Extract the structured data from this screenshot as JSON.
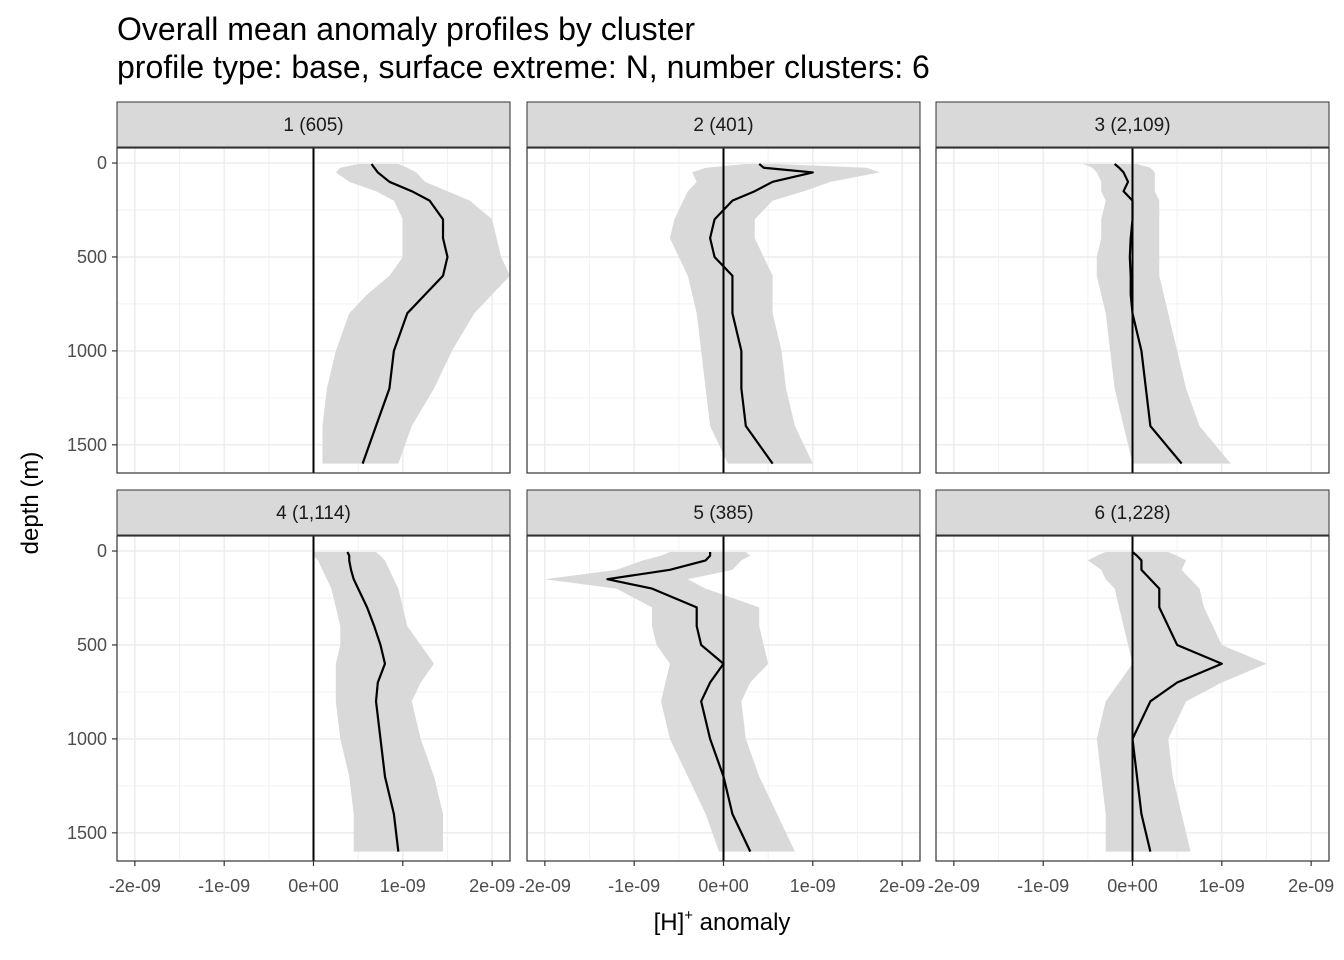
{
  "chart_data": {
    "type": "line",
    "title": "Overall mean anomaly profiles by cluster",
    "subtitle": "profile type: base, surface extreme: N, number clusters: 6",
    "xlabel": "[H]",
    "xlabel_sup": "+",
    "xlabel_suffix": " anomaly",
    "ylabel": "depth (m)",
    "xlim": [
      -2.2e-09,
      2.2e-09
    ],
    "ylim": [
      1650,
      -80
    ],
    "y_reversed": true,
    "x_ticks": [
      -2e-09,
      -1e-09,
      0,
      1e-09,
      2e-09
    ],
    "x_tick_labels": [
      "-2e-09",
      "-1e-09",
      "0e+00",
      "1e-09",
      "2e-09"
    ],
    "y_ticks": [
      0,
      500,
      1000,
      1500
    ],
    "y_tick_labels": [
      "0",
      "500",
      "1000",
      "1500"
    ],
    "reference_line_x": 0,
    "band_color": "#d9d9d9",
    "line_color": "#000000",
    "depths": [
      5,
      25,
      50,
      100,
      150,
      200,
      300,
      400,
      500,
      600,
      700,
      800,
      1000,
      1200,
      1400,
      1600
    ],
    "panels": [
      {
        "label": "1 (605)",
        "mean": [
          6.5e-10,
          6.8e-10,
          7.2e-10,
          8.5e-10,
          1.1e-09,
          1.3e-09,
          1.45e-09,
          1.45e-09,
          1.5e-09,
          1.45e-09,
          1.25e-09,
          1.05e-09,
          9e-10,
          8.5e-10,
          7e-10,
          5.5e-10
        ],
        "lower": [
          5e-10,
          3e-10,
          2.5e-10,
          4e-10,
          7e-10,
          9e-10,
          1e-09,
          1e-09,
          1e-09,
          8.5e-10,
          6e-10,
          4e-10,
          2.5e-10,
          1.5e-10,
          1e-10,
          1e-10
        ],
        "upper": [
          9.5e-10,
          1.05e-09,
          1.15e-09,
          1.25e-09,
          1.5e-09,
          1.75e-09,
          2e-09,
          2.05e-09,
          2.1e-09,
          2.2e-09,
          2e-09,
          1.8e-09,
          1.55e-09,
          1.35e-09,
          1.1e-09,
          9.5e-10
        ]
      },
      {
        "label": "2 (401)",
        "mean": [
          4e-10,
          4.5e-10,
          1e-09,
          5.5e-10,
          3.5e-10,
          1e-10,
          -1e-10,
          -1.5e-10,
          -1e-10,
          1e-10,
          1e-10,
          1e-10,
          2e-10,
          2e-10,
          2.5e-10,
          5.5e-10
        ],
        "lower": [
          2.5e-10,
          -2e-10,
          -3.5e-10,
          -3e-10,
          -4e-10,
          -4.5e-10,
          -5.5e-10,
          -6e-10,
          -5e-10,
          -4e-10,
          -3.5e-10,
          -3e-10,
          -2.5e-10,
          -2e-10,
          -1.5e-10,
          5e-11
        ],
        "upper": [
          6e-10,
          1.6e-09,
          1.75e-09,
          1.2e-09,
          9e-10,
          5.5e-10,
          3.5e-10,
          3.5e-10,
          4.5e-10,
          5.5e-10,
          5.5e-10,
          5.5e-10,
          6.5e-10,
          7e-10,
          8e-10,
          1e-09
        ]
      },
      {
        "label": "3 (2,109)",
        "mean": [
          -2e-10,
          -1.5e-10,
          -1e-10,
          -5e-11,
          -1e-10,
          0.0,
          0.0,
          -2e-11,
          -3e-11,
          -2e-11,
          -2e-11,
          0.0,
          1e-10,
          1.5e-10,
          2e-10,
          5.5e-10
        ],
        "lower": [
          -5.5e-10,
          -4.5e-10,
          -4e-10,
          -3.5e-10,
          -3.5e-10,
          -3e-10,
          -3.5e-10,
          -3.5e-10,
          -4e-10,
          -4e-10,
          -3.5e-10,
          -3e-10,
          -2.5e-10,
          -2e-10,
          -1e-10,
          0.0
        ],
        "upper": [
          5e-11,
          2e-10,
          2.5e-10,
          2.5e-10,
          2.5e-10,
          3e-10,
          3e-10,
          3e-10,
          3e-10,
          3e-10,
          3.5e-10,
          4e-10,
          5e-10,
          6e-10,
          7.5e-10,
          1.1e-09
        ]
      },
      {
        "label": "4 (1,114)",
        "mean": [
          3.8e-10,
          4e-10,
          4e-10,
          4.2e-10,
          4.5e-10,
          5e-10,
          6e-10,
          6.8e-10,
          7.5e-10,
          8e-10,
          7.2e-10,
          7e-10,
          7.5e-10,
          8e-10,
          9e-10,
          9.5e-10
        ],
        "lower": [
          0.0,
          0.0,
          5e-11,
          1e-10,
          1.5e-10,
          2e-10,
          2.5e-10,
          3e-10,
          3e-10,
          2.5e-10,
          2.5e-10,
          2.5e-10,
          3e-10,
          4e-10,
          4.5e-10,
          4.5e-10
        ],
        "upper": [
          7e-10,
          7.5e-10,
          8e-10,
          8.5e-10,
          9e-10,
          9.5e-10,
          1e-09,
          1.05e-09,
          1.2e-09,
          1.35e-09,
          1.2e-09,
          1.1e-09,
          1.2e-09,
          1.35e-09,
          1.45e-09,
          1.45e-09
        ]
      },
      {
        "label": "5 (385)",
        "mean": [
          -1.5e-10,
          -1.5e-10,
          -2e-10,
          -6e-10,
          -1.3e-09,
          -8e-10,
          -3e-10,
          -3e-10,
          -2.5e-10,
          0.0,
          -1.5e-10,
          -2.5e-10,
          -1.5e-10,
          0.0,
          1e-10,
          3e-10
        ],
        "lower": [
          -6e-10,
          -7e-10,
          -9e-10,
          -1.2e-09,
          -2e-09,
          -1.2e-09,
          -8e-10,
          -8e-10,
          -7.5e-10,
          -6e-10,
          -6.5e-10,
          -7e-10,
          -6e-10,
          -4e-10,
          -2e-10,
          -5e-11
        ],
        "upper": [
          2.5e-10,
          3e-10,
          2e-10,
          1e-10,
          -4e-10,
          -2e-10,
          4e-10,
          4e-10,
          4.5e-10,
          5e-10,
          3e-10,
          2e-10,
          2.5e-10,
          4e-10,
          6e-10,
          8e-10
        ]
      },
      {
        "label": "6 (1,228)",
        "mean": [
          0.0,
          5e-11,
          1e-10,
          1e-10,
          2e-10,
          3e-10,
          3e-10,
          4e-10,
          5e-10,
          1e-09,
          5e-10,
          2e-10,
          0.0,
          5e-11,
          1e-10,
          2e-10
        ],
        "lower": [
          -3e-10,
          -4e-10,
          -5e-10,
          -3.5e-10,
          -3e-10,
          -2e-10,
          -1.5e-10,
          -1e-10,
          -5e-11,
          0.0,
          -1.5e-10,
          -3e-10,
          -4e-10,
          -3.5e-10,
          -3e-10,
          -3e-10
        ],
        "upper": [
          4e-10,
          5e-10,
          6e-10,
          5.5e-10,
          6.5e-10,
          7.5e-10,
          8e-10,
          9e-10,
          1e-09,
          1.5e-09,
          1e-09,
          6e-10,
          4e-10,
          4.5e-10,
          5.5e-10,
          6.5e-10
        ]
      }
    ]
  }
}
